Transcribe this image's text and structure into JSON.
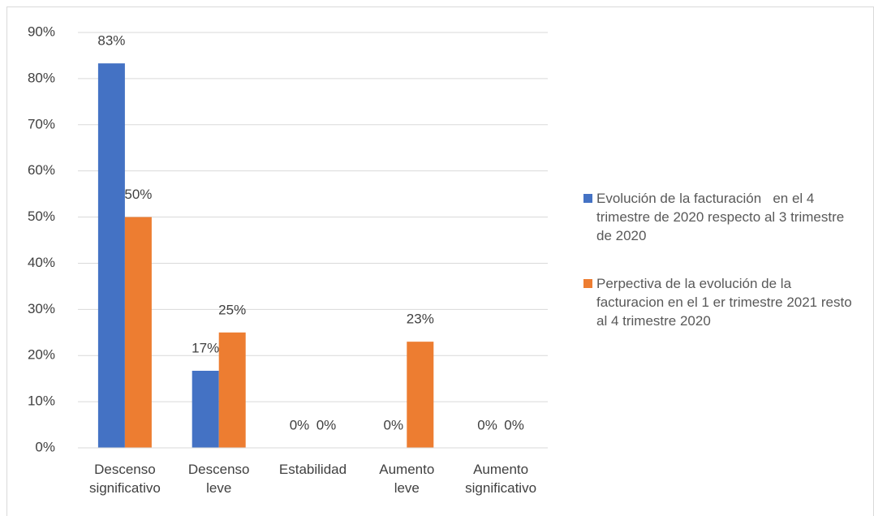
{
  "chart_data": {
    "type": "bar",
    "categories": [
      "Descenso significativo",
      "Descenso leve",
      "Estabilidad",
      "Aumento leve",
      "Aumento significativo"
    ],
    "series": [
      {
        "name": "Evolución de la facturación   en el 4 trimestre de 2020 respecto al 3 trimestre de 2020",
        "color": "#4472c4",
        "values": [
          83.3,
          16.7,
          0,
          0,
          0
        ],
        "value_labels": [
          "83%",
          "17%",
          "0%",
          "0%",
          "0%"
        ]
      },
      {
        "name": "Perpectiva de la evolución de la facturacion en el 1 er trimestre 2021 resto al 4 trimestre 2020",
        "color": "#ed7d31",
        "values": [
          50,
          25,
          0,
          23,
          0
        ],
        "value_labels": [
          "50%",
          "25%",
          "0%",
          "23%",
          "0%"
        ]
      }
    ],
    "ylim": [
      0,
      90
    ],
    "yticks": [
      {
        "value": 0,
        "label": "0%"
      },
      {
        "value": 10,
        "label": "10%"
      },
      {
        "value": 20,
        "label": "20%"
      },
      {
        "value": 30,
        "label": "30%"
      },
      {
        "value": 40,
        "label": "40%"
      },
      {
        "value": 50,
        "label": "50%"
      },
      {
        "value": 60,
        "label": "60%"
      },
      {
        "value": 70,
        "label": "70%"
      },
      {
        "value": 80,
        "label": "80%"
      },
      {
        "value": 90,
        "label": "90%"
      }
    ],
    "grid": true,
    "legend": "right"
  }
}
